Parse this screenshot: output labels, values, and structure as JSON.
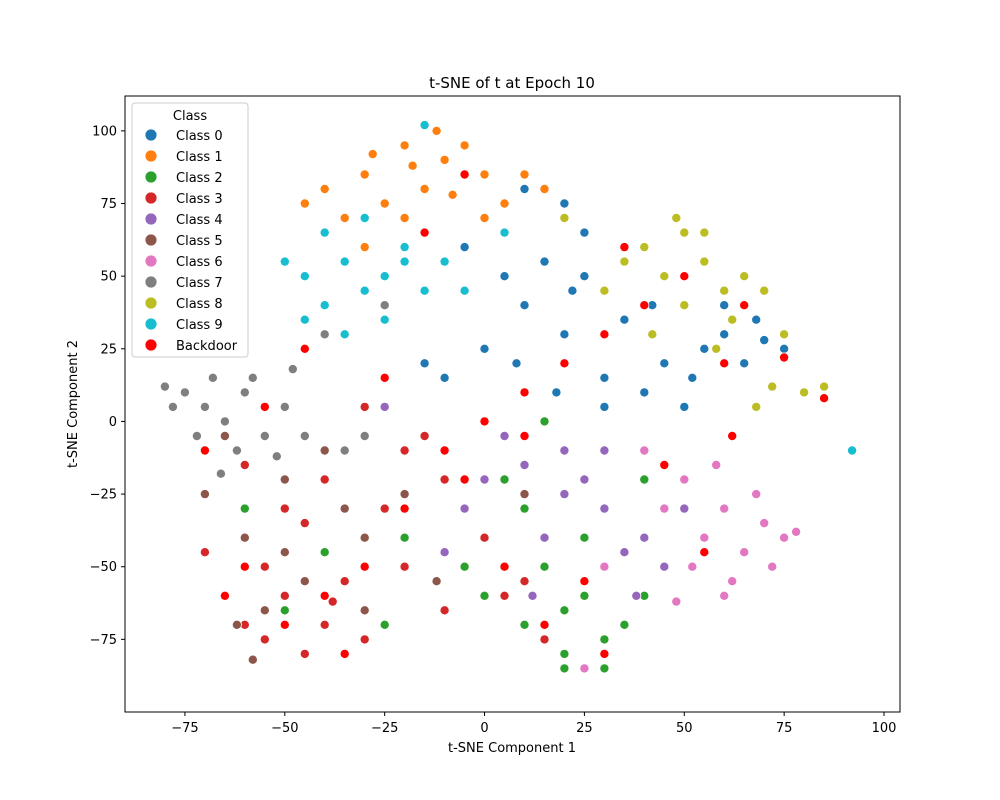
{
  "chart_data": {
    "type": "scatter",
    "title": "t-SNE of t at Epoch 10",
    "xlabel": "t-SNE Component 1",
    "ylabel": "t-SNE Component 2",
    "xlim": [
      -90,
      104
    ],
    "ylim": [
      -100,
      112
    ],
    "xticks": [
      -75,
      -50,
      -25,
      0,
      25,
      50,
      75,
      100
    ],
    "yticks": [
      -75,
      -50,
      -25,
      0,
      25,
      50,
      75,
      100
    ],
    "grid": false,
    "legend": {
      "title": "Class",
      "placement": "top-left",
      "entries": [
        {
          "label": "Class 0",
          "color": "#1f77b4"
        },
        {
          "label": "Class 1",
          "color": "#ff7f0e"
        },
        {
          "label": "Class 2",
          "color": "#2ca02c"
        },
        {
          "label": "Class 3",
          "color": "#d62728"
        },
        {
          "label": "Class 4",
          "color": "#9467bd"
        },
        {
          "label": "Class 5",
          "color": "#8c564b"
        },
        {
          "label": "Class 6",
          "color": "#e377c2"
        },
        {
          "label": "Class 7",
          "color": "#7f7f7f"
        },
        {
          "label": "Class 8",
          "color": "#bcbd22"
        },
        {
          "label": "Class 9",
          "color": "#17becf"
        },
        {
          "label": "Backdoor",
          "color": "#ff0000"
        }
      ]
    },
    "series": [
      {
        "name": "Class 0",
        "color": "#1f77b4",
        "points": [
          [
            10,
            40
          ],
          [
            20,
            30
          ],
          [
            30,
            15
          ],
          [
            40,
            10
          ],
          [
            45,
            20
          ],
          [
            55,
            25
          ],
          [
            60,
            30
          ],
          [
            65,
            20
          ],
          [
            70,
            28
          ],
          [
            75,
            25
          ],
          [
            50,
            5
          ],
          [
            30,
            5
          ],
          [
            5,
            50
          ],
          [
            -5,
            60
          ],
          [
            15,
            55
          ],
          [
            25,
            50
          ],
          [
            35,
            35
          ],
          [
            42,
            40
          ],
          [
            -15,
            20
          ],
          [
            0,
            25
          ],
          [
            20,
            75
          ],
          [
            10,
            80
          ],
          [
            25,
            65
          ],
          [
            8,
            20
          ],
          [
            18,
            10
          ],
          [
            52,
            15
          ],
          [
            60,
            40
          ],
          [
            68,
            35
          ],
          [
            -10,
            15
          ],
          [
            22,
            45
          ]
        ]
      },
      {
        "name": "Class 1",
        "color": "#ff7f0e",
        "points": [
          [
            -30,
            85
          ],
          [
            -20,
            95
          ],
          [
            -10,
            90
          ],
          [
            0,
            85
          ],
          [
            5,
            75
          ],
          [
            -25,
            75
          ],
          [
            -35,
            70
          ],
          [
            -15,
            80
          ],
          [
            -5,
            95
          ],
          [
            -40,
            80
          ],
          [
            -20,
            70
          ],
          [
            10,
            85
          ],
          [
            -30,
            60
          ],
          [
            0,
            70
          ],
          [
            -12,
            100
          ],
          [
            -45,
            75
          ],
          [
            15,
            80
          ],
          [
            -18,
            88
          ],
          [
            -8,
            78
          ],
          [
            -28,
            92
          ]
        ]
      },
      {
        "name": "Class 2",
        "color": "#2ca02c",
        "points": [
          [
            10,
            -70
          ],
          [
            20,
            -80
          ],
          [
            30,
            -75
          ],
          [
            25,
            -60
          ],
          [
            15,
            -50
          ],
          [
            0,
            -60
          ],
          [
            35,
            -70
          ],
          [
            20,
            -65
          ],
          [
            40,
            -60
          ],
          [
            -5,
            -50
          ],
          [
            -20,
            -40
          ],
          [
            5,
            -20
          ],
          [
            15,
            0
          ],
          [
            20,
            -85
          ],
          [
            30,
            -85
          ],
          [
            -40,
            -45
          ],
          [
            -60,
            -30
          ],
          [
            10,
            -30
          ],
          [
            40,
            -20
          ],
          [
            -25,
            -70
          ],
          [
            -50,
            -65
          ],
          [
            25,
            -40
          ]
        ]
      },
      {
        "name": "Class 3",
        "color": "#d62728",
        "points": [
          [
            -50,
            -60
          ],
          [
            -40,
            -70
          ],
          [
            -60,
            -70
          ],
          [
            -45,
            -80
          ],
          [
            -30,
            -75
          ],
          [
            -55,
            -50
          ],
          [
            -35,
            -55
          ],
          [
            -25,
            -30
          ],
          [
            -10,
            -20
          ],
          [
            -20,
            -10
          ],
          [
            -40,
            -20
          ],
          [
            -50,
            -30
          ],
          [
            -30,
            5
          ],
          [
            -15,
            -5
          ],
          [
            5,
            -60
          ],
          [
            10,
            -55
          ],
          [
            -65,
            -60
          ],
          [
            -70,
            -45
          ],
          [
            -55,
            -75
          ],
          [
            -38,
            -62
          ],
          [
            -20,
            -50
          ],
          [
            0,
            -40
          ],
          [
            15,
            -75
          ],
          [
            -10,
            -65
          ],
          [
            -45,
            -35
          ],
          [
            -60,
            -15
          ]
        ]
      },
      {
        "name": "Class 4",
        "color": "#9467bd",
        "points": [
          [
            0,
            -20
          ],
          [
            10,
            -15
          ],
          [
            20,
            -25
          ],
          [
            30,
            -30
          ],
          [
            35,
            -45
          ],
          [
            25,
            -20
          ],
          [
            15,
            -40
          ],
          [
            40,
            -40
          ],
          [
            -5,
            -30
          ],
          [
            5,
            -5
          ],
          [
            30,
            -10
          ],
          [
            45,
            -50
          ],
          [
            -10,
            -45
          ],
          [
            20,
            -10
          ],
          [
            50,
            -30
          ],
          [
            -25,
            5
          ],
          [
            38,
            -60
          ],
          [
            12,
            -60
          ]
        ]
      },
      {
        "name": "Class 5",
        "color": "#8c564b",
        "points": [
          [
            -60,
            -40
          ],
          [
            -50,
            -20
          ],
          [
            -40,
            -10
          ],
          [
            -30,
            -40
          ],
          [
            -70,
            -25
          ],
          [
            -55,
            -65
          ],
          [
            -45,
            -55
          ],
          [
            -35,
            -30
          ],
          [
            -65,
            -5
          ],
          [
            -20,
            -25
          ],
          [
            -50,
            -45
          ],
          [
            -62,
            -70
          ],
          [
            -30,
            -65
          ],
          [
            10,
            -25
          ],
          [
            -12,
            -55
          ],
          [
            -58,
            -82
          ]
        ]
      },
      {
        "name": "Class 6",
        "color": "#e377c2",
        "points": [
          [
            60,
            -30
          ],
          [
            70,
            -35
          ],
          [
            65,
            -45
          ],
          [
            55,
            -40
          ],
          [
            50,
            -20
          ],
          [
            75,
            -40
          ],
          [
            62,
            -55
          ],
          [
            45,
            -30
          ],
          [
            58,
            -15
          ],
          [
            68,
            -25
          ],
          [
            72,
            -50
          ],
          [
            52,
            -50
          ],
          [
            40,
            -10
          ],
          [
            60,
            -60
          ],
          [
            30,
            -50
          ],
          [
            25,
            -85
          ],
          [
            78,
            -38
          ],
          [
            48,
            -62
          ]
        ]
      },
      {
        "name": "Class 7",
        "color": "#7f7f7f",
        "points": [
          [
            -70,
            5
          ],
          [
            -75,
            10
          ],
          [
            -65,
            0
          ],
          [
            -60,
            10
          ],
          [
            -55,
            -5
          ],
          [
            -68,
            15
          ],
          [
            -72,
            -5
          ],
          [
            -62,
            -10
          ],
          [
            -50,
            5
          ],
          [
            -58,
            15
          ],
          [
            -45,
            -5
          ],
          [
            -78,
            5
          ],
          [
            -66,
            -18
          ],
          [
            -52,
            -12
          ],
          [
            -35,
            -10
          ],
          [
            -40,
            30
          ],
          [
            -25,
            40
          ],
          [
            -48,
            18
          ],
          [
            -30,
            -5
          ],
          [
            -80,
            12
          ]
        ]
      },
      {
        "name": "Class 8",
        "color": "#bcbd22",
        "points": [
          [
            40,
            60
          ],
          [
            50,
            65
          ],
          [
            55,
            55
          ],
          [
            60,
            45
          ],
          [
            45,
            50
          ],
          [
            65,
            50
          ],
          [
            50,
            40
          ],
          [
            35,
            55
          ],
          [
            70,
            45
          ],
          [
            55,
            65
          ],
          [
            42,
            30
          ],
          [
            30,
            45
          ],
          [
            62,
            35
          ],
          [
            48,
            70
          ],
          [
            58,
            25
          ],
          [
            20,
            70
          ],
          [
            75,
            30
          ],
          [
            80,
            10
          ],
          [
            85,
            12
          ],
          [
            72,
            12
          ],
          [
            68,
            5
          ]
        ]
      },
      {
        "name": "Class 9",
        "color": "#17becf",
        "points": [
          [
            -40,
            40
          ],
          [
            -30,
            45
          ],
          [
            -20,
            55
          ],
          [
            -35,
            55
          ],
          [
            -45,
            50
          ],
          [
            -25,
            35
          ],
          [
            -15,
            45
          ],
          [
            -40,
            65
          ],
          [
            -30,
            70
          ],
          [
            -10,
            55
          ],
          [
            -45,
            35
          ],
          [
            -20,
            60
          ],
          [
            -5,
            45
          ],
          [
            -35,
            30
          ],
          [
            -15,
            102
          ],
          [
            5,
            65
          ],
          [
            -50,
            55
          ],
          [
            -25,
            50
          ],
          [
            92,
            -10
          ]
        ]
      },
      {
        "name": "Backdoor",
        "color": "#ff0000",
        "points": [
          [
            -50,
            -70
          ],
          [
            -40,
            -60
          ],
          [
            -30,
            -50
          ],
          [
            -20,
            -30
          ],
          [
            -10,
            -10
          ],
          [
            0,
            0
          ],
          [
            10,
            10
          ],
          [
            20,
            20
          ],
          [
            30,
            30
          ],
          [
            40,
            40
          ],
          [
            50,
            50
          ],
          [
            60,
            20
          ],
          [
            -60,
            -50
          ],
          [
            -35,
            -80
          ],
          [
            5,
            -50
          ],
          [
            15,
            -70
          ],
          [
            25,
            -55
          ],
          [
            45,
            -15
          ],
          [
            55,
            -45
          ],
          [
            -25,
            15
          ],
          [
            -45,
            25
          ],
          [
            -15,
            65
          ],
          [
            -5,
            85
          ],
          [
            35,
            60
          ],
          [
            65,
            40
          ],
          [
            75,
            22
          ],
          [
            85,
            8
          ],
          [
            -70,
            -10
          ],
          [
            -55,
            5
          ],
          [
            -65,
            -60
          ],
          [
            10,
            -5
          ],
          [
            -5,
            -20
          ],
          [
            30,
            -80
          ],
          [
            62,
            -5
          ]
        ]
      }
    ]
  }
}
